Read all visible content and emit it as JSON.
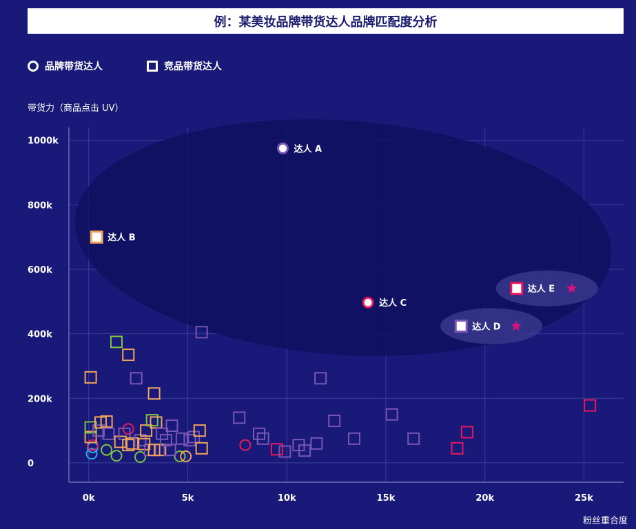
{
  "title": "例：某美妆品牌带货达人品牌匹配度分析",
  "legend": {
    "brand": "品牌带货达人",
    "competitor": "竞品带货达人"
  },
  "chart_data": {
    "type": "scatter",
    "ylabel": "带货力（商品点击 UV）",
    "xlabel": "粉丝重合度",
    "xlim": [
      -1000,
      27000
    ],
    "ylim": [
      -60000,
      1040000
    ],
    "x_ticks": [
      0,
      5000,
      10000,
      15000,
      20000,
      25000
    ],
    "x_tick_labels": [
      "0k",
      "5k",
      "10k",
      "15k",
      "20k",
      "25k"
    ],
    "y_ticks": [
      0,
      200000,
      400000,
      600000,
      800000,
      1000000
    ],
    "y_tick_labels": [
      "0",
      "200k",
      "400k",
      "600k",
      "800k",
      "1000k"
    ],
    "grid": true,
    "legend_position": "top-left",
    "highlighted": [
      {
        "label": "达人 A",
        "x": 9800,
        "y": 975000,
        "shape": "circle",
        "color": "#7a56b3",
        "star": false
      },
      {
        "label": "达人 B",
        "x": 400,
        "y": 700000,
        "shape": "square",
        "color": "#f0a45a",
        "star": false
      },
      {
        "label": "达人 C",
        "x": 14100,
        "y": 497000,
        "shape": "circle",
        "color": "#e8185c",
        "star": false
      },
      {
        "label": "达人 D",
        "x": 18800,
        "y": 424000,
        "shape": "square",
        "color": "#7a56b3",
        "star": true
      },
      {
        "label": "达人 E",
        "x": 21600,
        "y": 541000,
        "shape": "square",
        "color": "#e8185c",
        "star": true
      }
    ],
    "series": [
      {
        "name": "品牌带货达人",
        "shape": "circle",
        "points": [
          {
            "x": 150,
            "y": 28000,
            "color": "#2aa8e8"
          },
          {
            "x": 200,
            "y": 48000,
            "color": "#2aa8e8"
          },
          {
            "x": 200,
            "y": 55000,
            "color": "#e8185c"
          },
          {
            "x": 900,
            "y": 40000,
            "color": "#7dc242"
          },
          {
            "x": 1400,
            "y": 22000,
            "color": "#7dc242"
          },
          {
            "x": 2000,
            "y": 105000,
            "color": "#e8185c"
          },
          {
            "x": 2600,
            "y": 18000,
            "color": "#7dc242"
          },
          {
            "x": 4600,
            "y": 20000,
            "color": "#7dc242"
          },
          {
            "x": 4900,
            "y": 20000,
            "color": "#f0a45a"
          },
          {
            "x": 7900,
            "y": 55000,
            "color": "#e8185c"
          }
        ]
      },
      {
        "name": "竞品带货达人",
        "shape": "square",
        "points": [
          {
            "x": 100,
            "y": 265000,
            "color": "#f0a45a"
          },
          {
            "x": 100,
            "y": 80000,
            "color": "#f0a45a"
          },
          {
            "x": 100,
            "y": 110000,
            "color": "#7dc242"
          },
          {
            "x": 500,
            "y": 100000,
            "color": "#7a56b3"
          },
          {
            "x": 600,
            "y": 125000,
            "color": "#f0a45a"
          },
          {
            "x": 900,
            "y": 128000,
            "color": "#f0a45a"
          },
          {
            "x": 1000,
            "y": 90000,
            "color": "#7a56b3"
          },
          {
            "x": 1400,
            "y": 375000,
            "color": "#7dc242"
          },
          {
            "x": 1600,
            "y": 65000,
            "color": "#f0a45a"
          },
          {
            "x": 1800,
            "y": 90000,
            "color": "#7a56b3"
          },
          {
            "x": 2000,
            "y": 335000,
            "color": "#f0a45a"
          },
          {
            "x": 2000,
            "y": 55000,
            "color": "#f0a45a"
          },
          {
            "x": 2200,
            "y": 60000,
            "color": "#f0a45a"
          },
          {
            "x": 2400,
            "y": 262000,
            "color": "#7a56b3"
          },
          {
            "x": 2600,
            "y": 70000,
            "color": "#7a56b3"
          },
          {
            "x": 2800,
            "y": 58000,
            "color": "#f0a45a"
          },
          {
            "x": 2900,
            "y": 100000,
            "color": "#f0a45a"
          },
          {
            "x": 3100,
            "y": 40000,
            "color": "#7a56b3"
          },
          {
            "x": 3200,
            "y": 132000,
            "color": "#7dc242"
          },
          {
            "x": 3300,
            "y": 215000,
            "color": "#f0a45a"
          },
          {
            "x": 3300,
            "y": 40000,
            "color": "#f0a45a"
          },
          {
            "x": 3400,
            "y": 125000,
            "color": "#f0a45a"
          },
          {
            "x": 3600,
            "y": 40000,
            "color": "#f0a45a"
          },
          {
            "x": 3700,
            "y": 90000,
            "color": "#7a56b3"
          },
          {
            "x": 3900,
            "y": 70000,
            "color": "#7a56b3"
          },
          {
            "x": 4100,
            "y": 40000,
            "color": "#7a56b3"
          },
          {
            "x": 4200,
            "y": 115000,
            "color": "#7a56b3"
          },
          {
            "x": 4700,
            "y": 75000,
            "color": "#7a56b3"
          },
          {
            "x": 5100,
            "y": 70000,
            "color": "#7a56b3"
          },
          {
            "x": 5300,
            "y": 80000,
            "color": "#7a56b3"
          },
          {
            "x": 5600,
            "y": 100000,
            "color": "#f0a45a"
          },
          {
            "x": 5700,
            "y": 45000,
            "color": "#f0a45a"
          },
          {
            "x": 5700,
            "y": 405000,
            "color": "#7a56b3"
          },
          {
            "x": 7600,
            "y": 140000,
            "color": "#7a56b3"
          },
          {
            "x": 8600,
            "y": 90000,
            "color": "#7a56b3"
          },
          {
            "x": 8800,
            "y": 75000,
            "color": "#7a56b3"
          },
          {
            "x": 9500,
            "y": 42000,
            "color": "#e8185c"
          },
          {
            "x": 9900,
            "y": 35000,
            "color": "#7a56b3"
          },
          {
            "x": 10600,
            "y": 55000,
            "color": "#7a56b3"
          },
          {
            "x": 10900,
            "y": 38000,
            "color": "#7a56b3"
          },
          {
            "x": 11500,
            "y": 60000,
            "color": "#7a56b3"
          },
          {
            "x": 11700,
            "y": 262000,
            "color": "#7a56b3"
          },
          {
            "x": 12400,
            "y": 130000,
            "color": "#7a56b3"
          },
          {
            "x": 13400,
            "y": 75000,
            "color": "#7a56b3"
          },
          {
            "x": 15300,
            "y": 150000,
            "color": "#7a56b3"
          },
          {
            "x": 16400,
            "y": 75000,
            "color": "#7a56b3"
          },
          {
            "x": 18600,
            "y": 45000,
            "color": "#e8185c"
          },
          {
            "x": 19100,
            "y": 95000,
            "color": "#e8185c"
          },
          {
            "x": 25300,
            "y": 178000,
            "color": "#e8185c"
          }
        ]
      }
    ]
  }
}
